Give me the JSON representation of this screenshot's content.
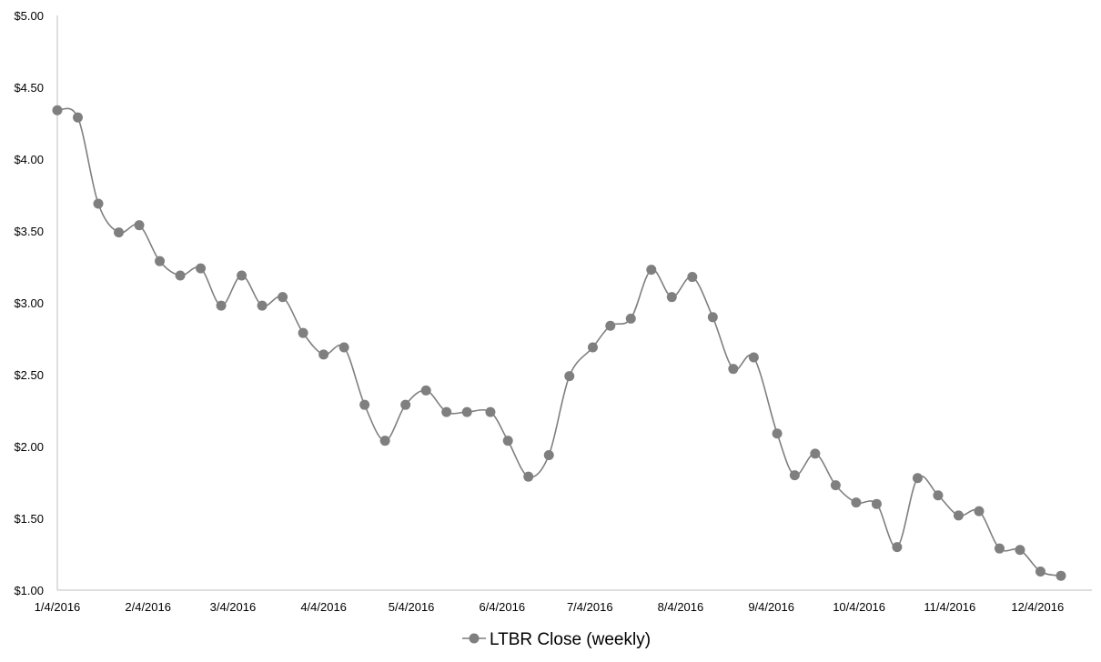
{
  "chart_data": {
    "type": "line",
    "title": "",
    "xlabel": "",
    "ylabel": "",
    "x": [
      "1/4/2016",
      "1/11/2016",
      "1/18/2016",
      "1/25/2016",
      "2/1/2016",
      "2/8/2016",
      "2/15/2016",
      "2/22/2016",
      "2/29/2016",
      "3/7/2016",
      "3/14/2016",
      "3/21/2016",
      "3/28/2016",
      "4/4/2016",
      "4/11/2016",
      "4/18/2016",
      "4/25/2016",
      "5/2/2016",
      "5/9/2016",
      "5/16/2016",
      "5/23/2016",
      "5/31/2016",
      "6/6/2016",
      "6/13/2016",
      "6/20/2016",
      "6/27/2016",
      "7/5/2016",
      "7/11/2016",
      "7/18/2016",
      "7/25/2016",
      "8/1/2016",
      "8/8/2016",
      "8/15/2016",
      "8/22/2016",
      "8/29/2016",
      "9/6/2016",
      "9/12/2016",
      "9/19/2016",
      "9/26/2016",
      "10/3/2016",
      "10/10/2016",
      "10/17/2016",
      "10/24/2016",
      "10/31/2016",
      "11/7/2016",
      "11/14/2016",
      "11/21/2016",
      "11/28/2016",
      "12/5/2016",
      "12/12/2016"
    ],
    "series": [
      {
        "name": "LTBR Close (weekly)",
        "values": [
          4.34,
          4.29,
          3.69,
          3.49,
          3.54,
          3.29,
          3.19,
          3.24,
          2.98,
          3.19,
          2.98,
          3.04,
          2.79,
          2.64,
          2.69,
          2.29,
          2.04,
          2.29,
          2.39,
          2.24,
          2.24,
          2.24,
          2.04,
          1.79,
          1.94,
          2.49,
          2.69,
          2.84,
          2.89,
          3.23,
          3.04,
          3.18,
          2.9,
          2.54,
          2.62,
          2.09,
          1.8,
          1.95,
          1.73,
          1.61,
          1.6,
          1.3,
          1.78,
          1.66,
          1.52,
          1.55,
          1.29,
          1.28,
          1.13,
          1.1
        ],
        "color": "#7f7f7f"
      }
    ],
    "x_ticks": [
      "1/4/2016",
      "2/4/2016",
      "3/4/2016",
      "4/4/2016",
      "5/4/2016",
      "6/4/2016",
      "7/4/2016",
      "8/4/2016",
      "9/4/2016",
      "10/4/2016",
      "11/4/2016",
      "12/4/2016"
    ],
    "y_ticks": [
      "$1.00",
      "$1.50",
      "$2.00",
      "$2.50",
      "$3.00",
      "$3.50",
      "$4.00",
      "$4.50",
      "$5.00"
    ],
    "ylim": [
      1.0,
      5.0
    ],
    "xlim": [
      "1/4/2016",
      "12/12/2016"
    ],
    "grid": false,
    "smooth": true,
    "marker": "circle",
    "legend": {
      "position": "bottom",
      "label": "LTBR Close (weekly)"
    }
  }
}
